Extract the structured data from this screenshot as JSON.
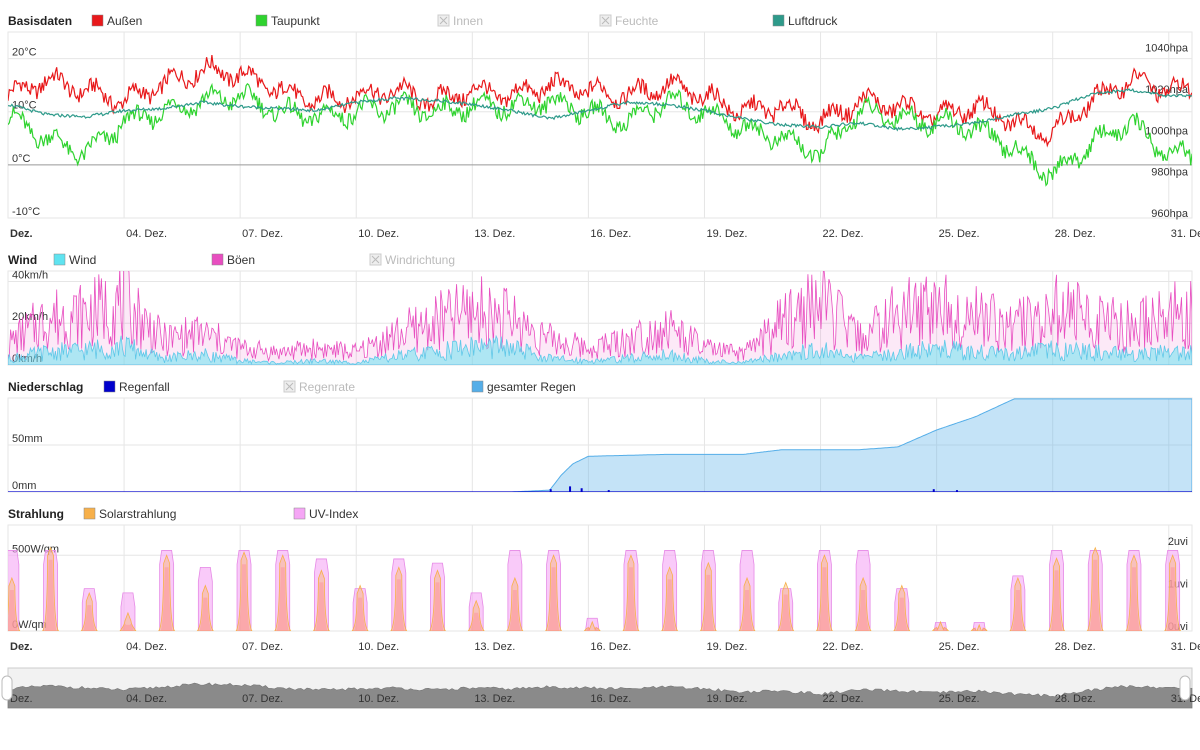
{
  "chart_data": [
    {
      "type": "line",
      "title": "Basisdaten",
      "legend": [
        {
          "name": "Außen",
          "color": "#e8191b",
          "enabled": true
        },
        {
          "name": "Taupunkt",
          "color": "#2fd32f",
          "enabled": true
        },
        {
          "name": "Innen",
          "color": "#bbbbbb",
          "enabled": false
        },
        {
          "name": "Feuchte",
          "color": "#bbbbbb",
          "enabled": false
        },
        {
          "name": "Luftdruck",
          "color": "#2e9a8a",
          "enabled": true
        }
      ],
      "y_ticks_left": [
        "20°C",
        "10°C",
        "0°C",
        "-10°C"
      ],
      "y_ticks_right": [
        "1040hpa",
        "1020hpa",
        "1000hpa",
        "980hpa",
        "960hpa"
      ],
      "ylim": [
        -10,
        25
      ],
      "ylim_right": [
        960,
        1050
      ],
      "x_ticks": [
        "Dez.",
        "04. Dez.",
        "07. Dez.",
        "10. Dez.",
        "13. Dez.",
        "16. Dez.",
        "19. Dez.",
        "22. Dez.",
        "25. Dez.",
        "28. Dez.",
        "31. Dez."
      ],
      "series": [
        {
          "name": "Außen",
          "axis": "left",
          "x": [
            1,
            2,
            3,
            4,
            5,
            6,
            7,
            8,
            9,
            10,
            11,
            12,
            13,
            14,
            15,
            16,
            17,
            18,
            19,
            20,
            21,
            22,
            23,
            24,
            25,
            26,
            27,
            28,
            29,
            30,
            31
          ],
          "values": [
            13,
            16,
            14,
            12,
            15,
            18,
            17,
            14,
            12,
            13,
            14,
            12,
            14,
            13,
            15,
            14,
            13,
            15,
            13,
            10,
            11,
            8,
            12,
            11,
            9,
            11,
            8,
            6,
            12,
            16,
            14
          ]
        },
        {
          "name": "Taupunkt",
          "axis": "left",
          "x": [
            1,
            2,
            3,
            4,
            5,
            6,
            7,
            8,
            9,
            10,
            11,
            12,
            13,
            14,
            15,
            16,
            17,
            18,
            19,
            20,
            21,
            22,
            23,
            24,
            25,
            26,
            27,
            28,
            29,
            30,
            31
          ],
          "values": [
            9,
            5,
            2,
            8,
            10,
            12,
            13,
            10,
            9,
            10,
            11,
            10,
            11,
            11,
            12,
            10,
            8,
            12,
            10,
            7,
            5,
            2,
            10,
            9,
            8,
            7,
            3,
            -2,
            4,
            8,
            2
          ]
        },
        {
          "name": "Luftdruck",
          "axis": "right",
          "x": [
            1,
            2,
            3,
            4,
            5,
            6,
            7,
            8,
            9,
            10,
            11,
            12,
            13,
            14,
            15,
            16,
            17,
            18,
            19,
            20,
            21,
            22,
            23,
            24,
            25,
            26,
            27,
            28,
            29,
            30,
            31
          ],
          "values": [
            1015,
            1010,
            1009,
            1012,
            1013,
            1016,
            1014,
            1013,
            1012,
            1016,
            1018,
            1017,
            1015,
            1012,
            1008,
            1012,
            1016,
            1015,
            1012,
            1008,
            1005,
            1004,
            1006,
            1003,
            1004,
            1006,
            1010,
            1013,
            1020,
            1022,
            1019
          ]
        }
      ]
    },
    {
      "type": "area",
      "title": "Wind",
      "legend": [
        {
          "name": "Wind",
          "color": "#5fe3f0",
          "enabled": true
        },
        {
          "name": "Böen",
          "color": "#e84ec0",
          "enabled": true
        },
        {
          "name": "Windrichtung",
          "color": "#bbbbbb",
          "enabled": false
        }
      ],
      "y_ticks_left": [
        "40km/h",
        "20km/h",
        "0km/h"
      ],
      "ylim": [
        0,
        45
      ],
      "series": [
        {
          "name": "Wind",
          "x": [
            1,
            2,
            3,
            4,
            5,
            6,
            7,
            8,
            9,
            10,
            11,
            12,
            13,
            14,
            15,
            16,
            17,
            18,
            19,
            20,
            21,
            22,
            23,
            24,
            25,
            26,
            27,
            28,
            29,
            30,
            31
          ],
          "values": [
            3,
            6,
            7,
            9,
            3,
            5,
            2,
            1,
            2,
            1,
            4,
            6,
            9,
            8,
            3,
            2,
            3,
            5,
            2,
            1,
            5,
            7,
            3,
            6,
            8,
            6,
            5,
            7,
            6,
            5,
            6
          ]
        },
        {
          "name": "Böen",
          "x": [
            1,
            2,
            3,
            4,
            5,
            6,
            7,
            8,
            9,
            10,
            11,
            12,
            13,
            14,
            15,
            16,
            17,
            18,
            19,
            20,
            21,
            22,
            23,
            24,
            25,
            26,
            27,
            28,
            29,
            30,
            31
          ],
          "values": [
            10,
            22,
            24,
            30,
            12,
            15,
            8,
            6,
            8,
            6,
            14,
            20,
            26,
            22,
            12,
            8,
            12,
            18,
            8,
            5,
            20,
            30,
            12,
            24,
            28,
            24,
            18,
            26,
            22,
            18,
            24
          ]
        }
      ]
    },
    {
      "type": "area",
      "title": "Niederschlag",
      "legend": [
        {
          "name": "Regenfall",
          "color": "#0000cc",
          "enabled": true
        },
        {
          "name": "Regenrate",
          "color": "#bbbbbb",
          "enabled": false
        },
        {
          "name": "gesamter Regen",
          "color": "#55aee8",
          "enabled": true
        }
      ],
      "y_ticks_left": [
        "50mm",
        "0mm"
      ],
      "ylim": [
        0,
        100
      ],
      "series": [
        {
          "name": "gesamter Regen",
          "x": [
            1,
            14,
            15,
            15.3,
            15.6,
            16,
            17,
            18,
            19,
            20,
            21,
            22,
            23,
            24,
            25,
            26,
            27,
            28,
            29,
            30,
            31
          ],
          "values": [
            0,
            0,
            2,
            18,
            30,
            38,
            39,
            40,
            40,
            40,
            45,
            45,
            45,
            48,
            66,
            80,
            99,
            99,
            99,
            99,
            99
          ]
        },
        {
          "name": "Regenfall",
          "x": [
            15,
            15.5,
            15.8,
            16.5,
            24.9,
            25.5
          ],
          "values": [
            3,
            6,
            4,
            2,
            3,
            2
          ]
        }
      ]
    },
    {
      "type": "area",
      "title": "Strahlung",
      "legend": [
        {
          "name": "Solarstrahlung",
          "color": "#f7b04a",
          "enabled": true
        },
        {
          "name": "UV-Index",
          "color": "#f5a6f5",
          "enabled": true
        }
      ],
      "y_ticks_left": [
        "500W/qm",
        "0W/qm"
      ],
      "y_ticks_right": [
        "2uvi",
        "1uvi",
        "0uvi"
      ],
      "ylim": [
        0,
        700
      ],
      "ylim_right": [
        0,
        2.5
      ],
      "x_ticks": [
        "Dez.",
        "04. Dez.",
        "07. Dez.",
        "10. Dez.",
        "13. Dez.",
        "16. Dez.",
        "19. Dez.",
        "22. Dez.",
        "25. Dez.",
        "28. Dez.",
        "31. Dez."
      ],
      "series": [
        {
          "name": "Solarstrahlung",
          "x": [
            1,
            2,
            3,
            4,
            5,
            6,
            7,
            8,
            9,
            10,
            11,
            12,
            13,
            14,
            15,
            16,
            17,
            18,
            19,
            20,
            21,
            22,
            23,
            24,
            25,
            26,
            27,
            28,
            29,
            30,
            31
          ],
          "values": [
            350,
            550,
            250,
            120,
            500,
            300,
            520,
            500,
            400,
            300,
            420,
            400,
            200,
            350,
            500,
            60,
            500,
            420,
            450,
            350,
            320,
            500,
            350,
            300,
            60,
            40,
            350,
            480,
            550,
            500,
            500
          ]
        },
        {
          "name": "UV-Index",
          "x": [
            1,
            2,
            3,
            4,
            5,
            6,
            7,
            8,
            9,
            10,
            11,
            12,
            13,
            14,
            15,
            16,
            17,
            18,
            19,
            20,
            21,
            22,
            23,
            24,
            25,
            26,
            27,
            28,
            29,
            30,
            31
          ],
          "values": [
            1.9,
            1.9,
            1.0,
            0.9,
            1.9,
            1.5,
            1.9,
            1.9,
            1.7,
            1.0,
            1.7,
            1.6,
            0.9,
            1.9,
            1.9,
            0.3,
            1.9,
            1.9,
            1.9,
            1.9,
            1.0,
            1.9,
            1.9,
            1.0,
            0.2,
            0.2,
            1.3,
            1.9,
            1.9,
            1.9,
            1.9
          ]
        }
      ]
    }
  ],
  "navigator": {
    "x_ticks": [
      "Dez.",
      "04. Dez.",
      "07. Dez.",
      "10. Dez.",
      "13. Dez.",
      "16. Dez.",
      "19. Dez.",
      "22. Dez.",
      "25. Dez.",
      "28. Dez.",
      "31. Dez."
    ]
  }
}
